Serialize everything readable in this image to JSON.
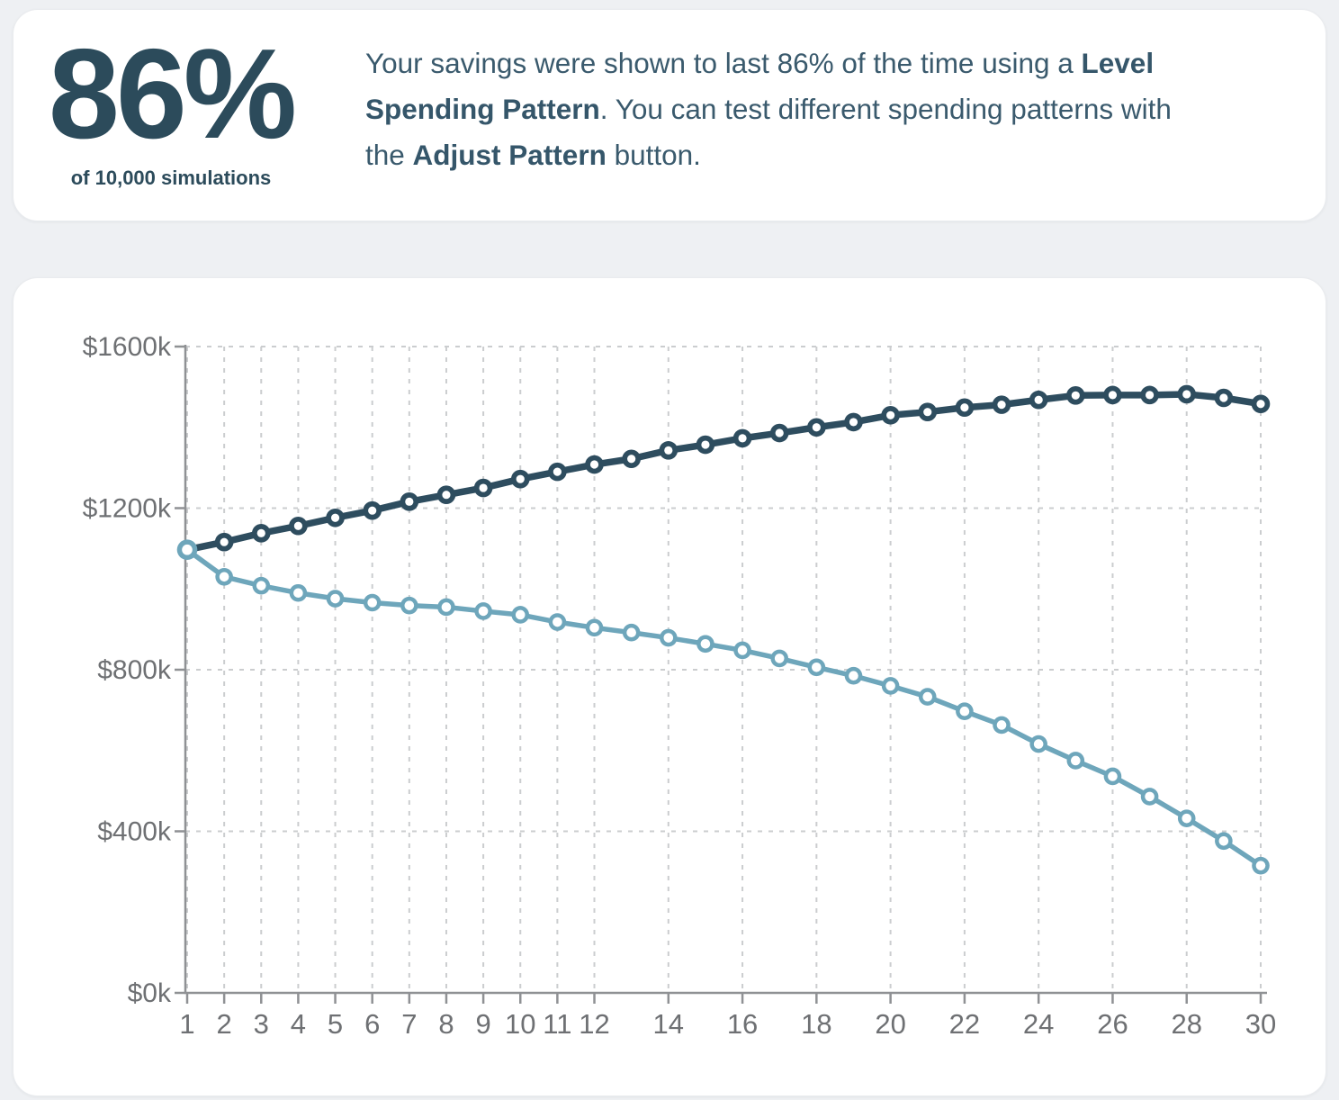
{
  "summary_card": {
    "headline": "86%",
    "subheadline": "of 10,000 simulations",
    "description_parts": [
      {
        "text": "Your savings were shown to last 86% of the time using a ",
        "bold": false
      },
      {
        "text": "Level Spending Pattern",
        "bold": true
      },
      {
        "text": ". You can test different spending patterns with the ",
        "bold": false
      },
      {
        "text": "Adjust Pattern",
        "bold": true
      },
      {
        "text": " button.",
        "bold": false
      }
    ]
  },
  "chart_data": {
    "type": "line",
    "title": "",
    "unit": "thousand USD",
    "x_years": [
      1,
      2,
      3,
      4,
      5,
      6,
      7,
      8,
      9,
      10,
      11,
      12,
      13,
      14,
      15,
      16,
      17,
      18,
      19,
      20,
      21,
      22,
      23,
      24,
      25,
      26,
      27,
      28,
      29,
      30
    ],
    "series": [
      {
        "name": "upper-balance-projection",
        "color": "#2e4d5f",
        "marker": "filled-donut",
        "values": [
          1097,
          1116,
          1138,
          1156,
          1176,
          1194,
          1216,
          1233,
          1250,
          1272,
          1290,
          1308,
          1322,
          1343,
          1357,
          1373,
          1386,
          1400,
          1413,
          1430,
          1438,
          1449,
          1456,
          1468,
          1479,
          1480,
          1480,
          1482,
          1473,
          1458
        ]
      },
      {
        "name": "lower-balance-projection",
        "color": "#6ea6bb",
        "marker": "open-ring",
        "values": [
          1097,
          1030,
          1008,
          990,
          976,
          966,
          959,
          955,
          945,
          936,
          918,
          904,
          892,
          879,
          864,
          848,
          828,
          806,
          785,
          760,
          733,
          697,
          663,
          616,
          575,
          536,
          486,
          432,
          376,
          315
        ]
      }
    ],
    "x_tick_labels": [
      1,
      2,
      3,
      4,
      5,
      6,
      7,
      8,
      9,
      10,
      11,
      12,
      14,
      16,
      18,
      20,
      22,
      24,
      26,
      28,
      30
    ],
    "y_ticks": [
      {
        "value": 0,
        "label": "$0k"
      },
      {
        "value": 400,
        "label": "$400k"
      },
      {
        "value": 800,
        "label": "$800k"
      },
      {
        "value": 1200,
        "label": "$1200k"
      },
      {
        "value": 1600,
        "label": "$1600k"
      }
    ],
    "xlim": [
      1,
      30
    ],
    "ylim": [
      0,
      1600
    ],
    "grid": "dashed",
    "legend_position": "none"
  },
  "colors": {
    "page_background": "#eef0f3",
    "card_background": "#ffffff",
    "headline_text": "#2c4b5b",
    "body_text": "#3a5a6d",
    "axis_line": "#8f9194",
    "grid_line": "#cbcdcf",
    "tick_label": "#6e7073",
    "series_dark": "#2e4d5f",
    "series_light": "#6ea6bb"
  }
}
